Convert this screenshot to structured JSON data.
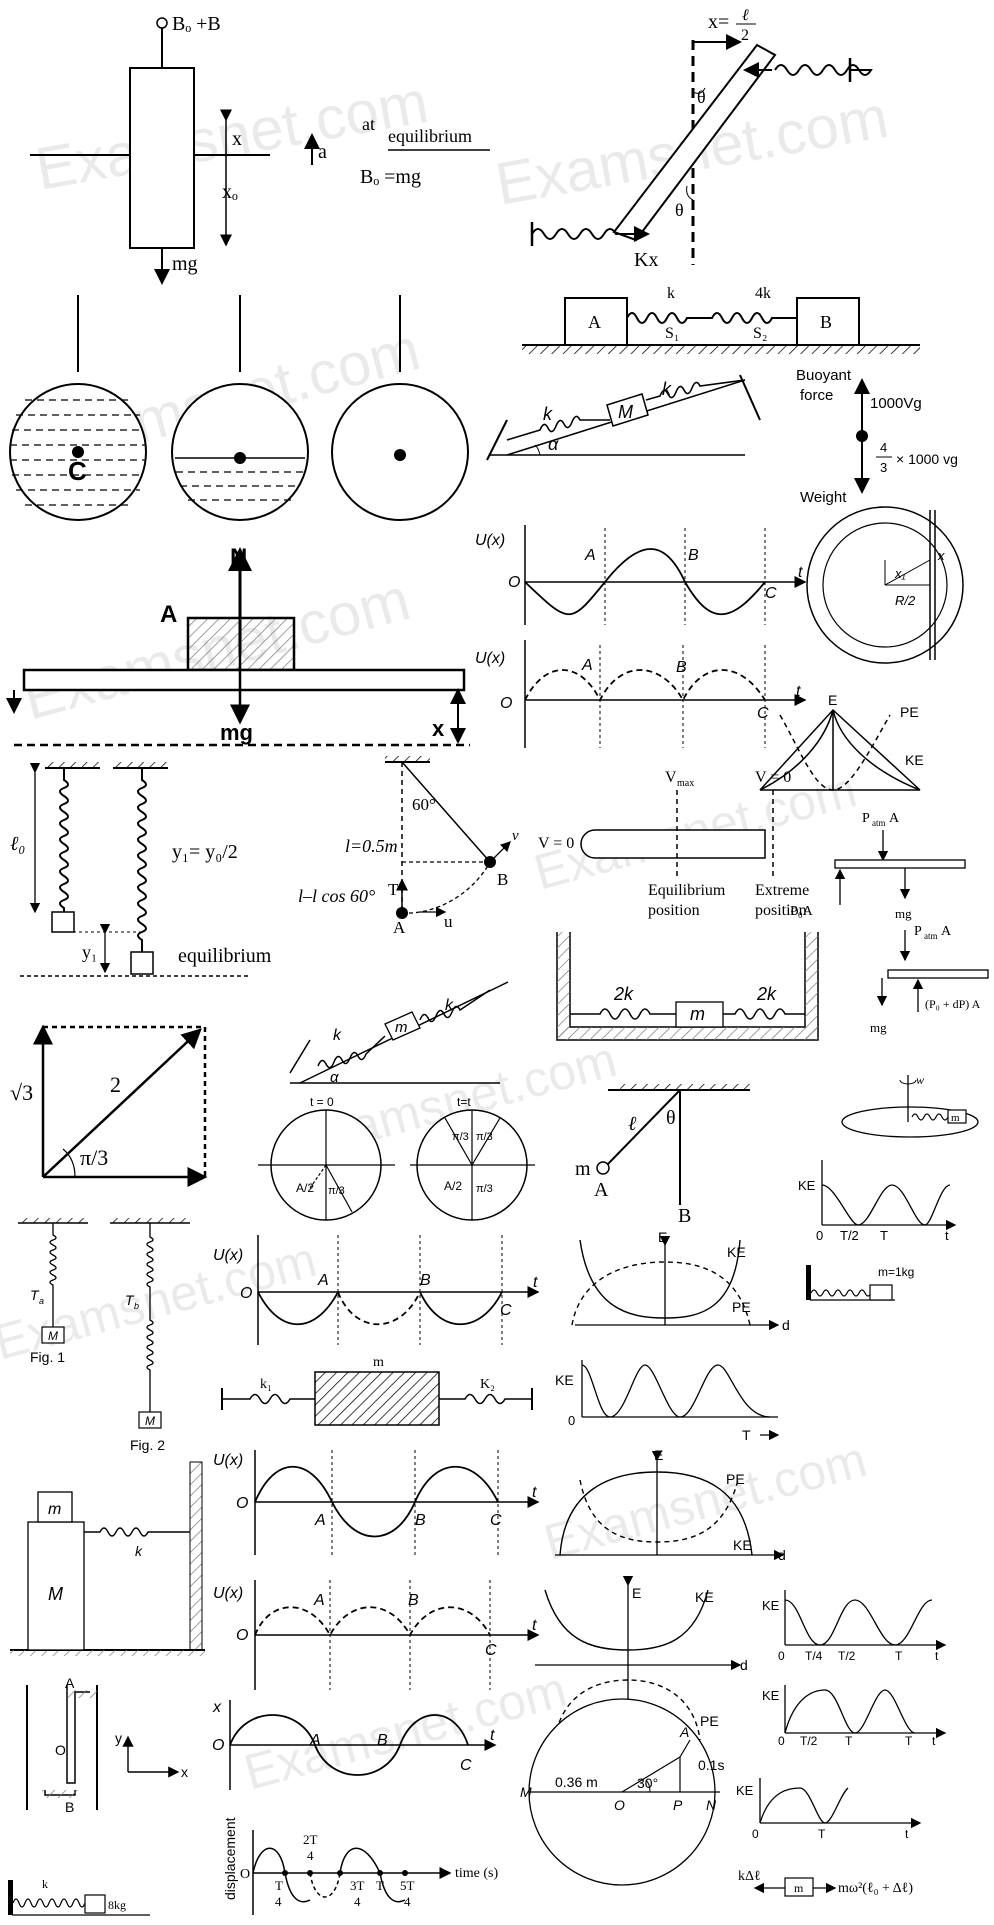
{
  "watermark": "Examsnet.com",
  "buoyancy_block": {
    "top": "Bₒ +B",
    "x": "x",
    "x0": "xₒ",
    "a": "a",
    "at": "at",
    "equilibrium": "equilibrium",
    "eq": "Bₒ =mg",
    "mg": "mg"
  },
  "rod_spring": {
    "x_eq": "x=",
    "l": "ℓ",
    "two": "2",
    "theta": "θ",
    "kx": "Kx"
  },
  "two_blocks": {
    "A": "A",
    "B": "B",
    "k": "k",
    "k4": "4k",
    "S1": "S₁",
    "S2": "S₂"
  },
  "incline_top": {
    "k": "k",
    "M": "M",
    "alpha": "α"
  },
  "buoyant": {
    "force1": "Buoyant",
    "force2": "force",
    "up": "1000Vg",
    "num": "4",
    "den": "3",
    "down": "× 1000 vg",
    "weight": "Weight"
  },
  "plank": {
    "N": "N",
    "A": "A",
    "mg": "mg",
    "x": "x"
  },
  "sphere": {
    "C": "C"
  },
  "ux1": {
    "ylabel": "U(x)",
    "O": "O",
    "A": "A",
    "B": "B",
    "C": "C",
    "t": "t"
  },
  "ring": {
    "x1": "x₁",
    "x": "x",
    "R2": "R/2"
  },
  "ke_pe_cross": {
    "E": "E",
    "PE": "PE",
    "KE": "KE"
  },
  "spring_pair": {
    "l0": "ℓ₀",
    "y1": "y₁",
    "rel": "y₁= y₀/2",
    "eq": "equilibrium"
  },
  "pendulum": {
    "angle": "60°",
    "l": "l=0.5m",
    "lcos": "l–l cos 60°",
    "T": "T",
    "A": "A",
    "B": "B",
    "u": "u",
    "v": "v"
  },
  "tube": {
    "vmax": "V",
    "vmax_sub": "max",
    "v0r": "V = 0",
    "v0l": "V = 0",
    "eq1": "Equilibrium",
    "eq2": "position",
    "ex1": "Extreme",
    "ex2": "position"
  },
  "piston": {
    "p1": "P",
    "p1s": "atm",
    "p1e": "A",
    "p0": "P₀A",
    "mg": "mg",
    "p2": "P",
    "p2s": "atm",
    "p2e": "A",
    "mg2": "mg",
    "dp": "(P₀ + dP) A"
  },
  "vectors": {
    "root3": "√3",
    "two": "2",
    "ang": "π/3"
  },
  "incline2": {
    "k": "k",
    "m": "m",
    "alpha": "α"
  },
  "box2k": {
    "k1": "2k",
    "k2": "2k",
    "m": "m"
  },
  "turntable": {
    "w": "w",
    "m": "m"
  },
  "circles": {
    "t0": "t = 0",
    "tt": "t=t",
    "a2": "A/2",
    "p3": "π/3",
    "a2b": "A/2",
    "p3a": "π/3",
    "p3b": "π/3",
    "p3c": "π/3"
  },
  "pend2": {
    "l": "ℓ",
    "theta": "θ",
    "m": "m",
    "A": "A",
    "B": "B"
  },
  "ke_t1": {
    "KE": "KE",
    "zero": "0",
    "t2": "T/2",
    "T": "T",
    "t": "t"
  },
  "figs": {
    "Ta": "T",
    "Ta_s": "a",
    "Tb": "T",
    "Tb_s": "b",
    "M1": "M",
    "M2": "M",
    "f1": "Fig. 1",
    "f2": "Fig. 2"
  },
  "ux2": {
    "ylabel": "U(x)",
    "O": "O",
    "A": "A",
    "B": "B",
    "C": "C",
    "t": "t"
  },
  "e_d1": {
    "E": "E",
    "KE": "KE",
    "PE": "PE",
    "d": "d"
  },
  "wall_spring": {
    "m": "m=1kg"
  },
  "k1k2": {
    "m": "m",
    "k1": "k₁",
    "k2": "K₂"
  },
  "ke_T": {
    "KE": "KE",
    "zero": "0",
    "T": "T"
  },
  "ux3": {
    "ylabel": "U(x)",
    "O": "O",
    "A": "A",
    "B": "B",
    "C": "C",
    "t": "t"
  },
  "e_d2": {
    "E": "E",
    "PE": "PE",
    "KE": "KE",
    "d": "d"
  },
  "mM": {
    "m": "m",
    "M": "M",
    "k": "k"
  },
  "ux4": {
    "ylabel": "U(x)",
    "O": "O",
    "A": "A",
    "B": "B",
    "C": "C",
    "t": "t"
  },
  "e_d3": {
    "E": "E",
    "KE": "KE",
    "PE": "PE",
    "d": "d"
  },
  "ke_t2": {
    "KE": "KE",
    "zero": "0",
    "t4": "T/4",
    "t2": "T/2",
    "T": "T",
    "t": "t"
  },
  "ke_t3": {
    "KE": "KE",
    "zero": "0",
    "t2": "T/2",
    "T": "T",
    "T2": "T",
    "t": "t"
  },
  "utube": {
    "A": "A",
    "O": "O",
    "B": "B",
    "y": "y",
    "x": "x"
  },
  "xt": {
    "x": "x",
    "O": "O",
    "A": "A",
    "B": "B",
    "C": "C",
    "t": "t"
  },
  "circle_n": {
    "M": "M",
    "d": "0.36 m",
    "ang": "30°",
    "O": "O",
    "P": "P",
    "N": "N",
    "A": "A",
    "ds": "0.1s"
  },
  "ke_t4": {
    "KE": "KE",
    "zero": "0",
    "T": "T",
    "t": "t"
  },
  "disp": {
    "ylabel": "displacement",
    "O": "O",
    "T4": "T",
    "T4d": "4",
    "T2n": "2T",
    "T2d": "4",
    "T3n": "3T",
    "T3d": "4",
    "T": "T",
    "T5n": "5T",
    "T5d": "4",
    "time": "time (s)"
  },
  "spring8": {
    "k": "k",
    "m": "8kg"
  },
  "force_bal": {
    "left": "kΔℓ",
    "m": "m",
    "right": "mω²(ℓ₀ + Δℓ)"
  }
}
